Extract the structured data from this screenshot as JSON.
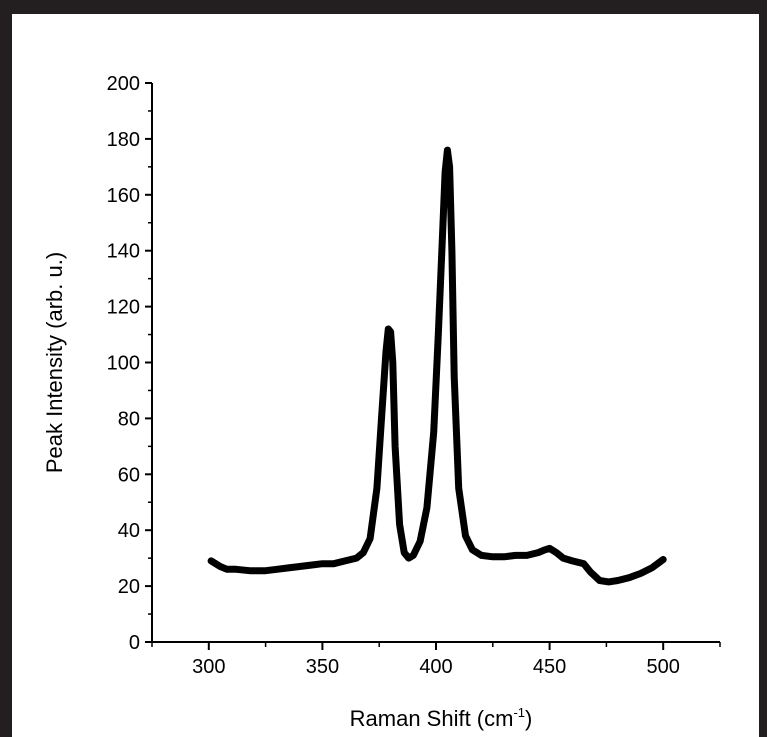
{
  "chart_data": {
    "type": "line",
    "title": "",
    "xlabel": "Raman Shift (cm",
    "xlabel_sup": "-1",
    "xlabel_end": ")",
    "ylabel": "Peak Intensity (arb. u.)",
    "xlim": [
      275,
      525
    ],
    "ylim": [
      0,
      200
    ],
    "x_ticks": [
      300,
      350,
      400,
      450,
      500
    ],
    "y_ticks": [
      0,
      20,
      40,
      60,
      80,
      100,
      120,
      140,
      160,
      180,
      200
    ],
    "grid": false,
    "legend": "none",
    "line_color": "#000000",
    "series": [
      {
        "x": [
          301,
          305,
          308,
          312,
          318,
          325,
          330,
          335,
          340,
          345,
          350,
          355,
          360,
          365,
          368,
          371,
          374,
          376,
          378,
          379,
          380,
          381,
          382,
          384,
          386,
          388,
          390,
          393,
          396,
          399,
          401,
          403,
          404,
          405,
          406,
          407,
          408,
          410,
          413,
          416,
          420,
          425,
          430,
          435,
          440,
          445,
          448,
          450,
          453,
          456,
          460,
          465,
          468,
          472,
          476,
          480,
          485,
          490,
          495,
          500
        ],
        "y": [
          29,
          27,
          26,
          26,
          25.5,
          25.5,
          26,
          26.5,
          27,
          27.5,
          28,
          28,
          29,
          30,
          32,
          37,
          55,
          80,
          104,
          112,
          111,
          100,
          70,
          42,
          32,
          30,
          31,
          36,
          48,
          75,
          110,
          148,
          168,
          176,
          170,
          140,
          95,
          55,
          38,
          33,
          31,
          30.5,
          30.5,
          31,
          31,
          32,
          33,
          33.5,
          32,
          30,
          29,
          28,
          25,
          22,
          21.5,
          22,
          23,
          24.5,
          26.5,
          29.5
        ]
      }
    ]
  }
}
